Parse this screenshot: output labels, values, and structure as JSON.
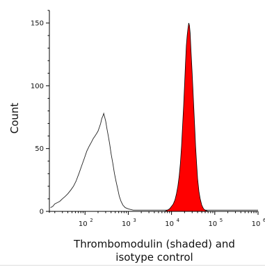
{
  "chart_data": {
    "type": "histogram",
    "xlabel_lines": [
      "Thrombomodulin (shaded) and",
      "isotype control"
    ],
    "ylabel": "Count",
    "xscale": "log",
    "xlim": [
      15,
      1000000
    ],
    "ylim": [
      0,
      160
    ],
    "y_ticks": [
      0,
      50,
      100,
      150
    ],
    "x_ticks": [
      {
        "value": 100,
        "base": "10",
        "exp": "2"
      },
      {
        "value": 1000,
        "base": "10",
        "exp": "3"
      },
      {
        "value": 10000,
        "base": "10",
        "exp": "4"
      },
      {
        "value": 100000,
        "base": "10",
        "exp": "5"
      },
      {
        "value": 1000000,
        "base": "10",
        "exp": "6"
      }
    ],
    "grid": false,
    "series": [
      {
        "role": "isotype-control",
        "style": "outline",
        "color": "#222222",
        "points": [
          [
            16,
            3
          ],
          [
            18,
            4
          ],
          [
            20,
            6
          ],
          [
            23,
            7
          ],
          [
            26,
            8
          ],
          [
            30,
            10
          ],
          [
            35,
            12
          ],
          [
            40,
            14
          ],
          [
            47,
            17
          ],
          [
            54,
            20
          ],
          [
            62,
            24
          ],
          [
            72,
            30
          ],
          [
            83,
            36
          ],
          [
            96,
            42
          ],
          [
            110,
            48
          ],
          [
            125,
            52
          ],
          [
            140,
            55
          ],
          [
            155,
            58
          ],
          [
            170,
            60
          ],
          [
            185,
            62
          ],
          [
            200,
            64
          ],
          [
            215,
            67
          ],
          [
            230,
            70
          ],
          [
            245,
            74
          ],
          [
            260,
            76
          ],
          [
            270,
            78
          ],
          [
            285,
            75
          ],
          [
            300,
            72
          ],
          [
            320,
            66
          ],
          [
            345,
            60
          ],
          [
            370,
            54
          ],
          [
            400,
            46
          ],
          [
            440,
            38
          ],
          [
            480,
            30
          ],
          [
            520,
            24
          ],
          [
            570,
            18
          ],
          [
            620,
            12
          ],
          [
            680,
            8
          ],
          [
            750,
            5
          ],
          [
            850,
            3
          ],
          [
            1000,
            2
          ],
          [
            1300,
            1
          ],
          [
            2000,
            1
          ],
          [
            3000,
            1
          ],
          [
            5000,
            1
          ],
          [
            8000,
            1
          ],
          [
            12000,
            1
          ],
          [
            20000,
            1
          ],
          [
            40000,
            1
          ],
          [
            80000,
            1
          ],
          [
            160000,
            1
          ],
          [
            400000,
            1
          ],
          [
            1000000,
            1
          ]
        ]
      },
      {
        "role": "thrombomodulin",
        "style": "filled",
        "color": "#ff0000",
        "points": [
          [
            7000,
            0
          ],
          [
            8000,
            1
          ],
          [
            9000,
            2
          ],
          [
            10000,
            4
          ],
          [
            11000,
            6
          ],
          [
            12000,
            9
          ],
          [
            13000,
            14
          ],
          [
            14000,
            20
          ],
          [
            15000,
            28
          ],
          [
            16000,
            38
          ],
          [
            17000,
            52
          ],
          [
            18000,
            68
          ],
          [
            19000,
            84
          ],
          [
            20000,
            100
          ],
          [
            21000,
            118
          ],
          [
            22000,
            132
          ],
          [
            23000,
            140
          ],
          [
            24000,
            146
          ],
          [
            25000,
            150
          ],
          [
            26000,
            148
          ],
          [
            27000,
            142
          ],
          [
            28000,
            130
          ],
          [
            30000,
            110
          ],
          [
            32000,
            90
          ],
          [
            34000,
            70
          ],
          [
            36000,
            52
          ],
          [
            38000,
            38
          ],
          [
            40000,
            26
          ],
          [
            43000,
            16
          ],
          [
            46000,
            10
          ],
          [
            50000,
            5
          ],
          [
            55000,
            2
          ],
          [
            60000,
            1
          ],
          [
            70000,
            0
          ]
        ]
      }
    ]
  }
}
